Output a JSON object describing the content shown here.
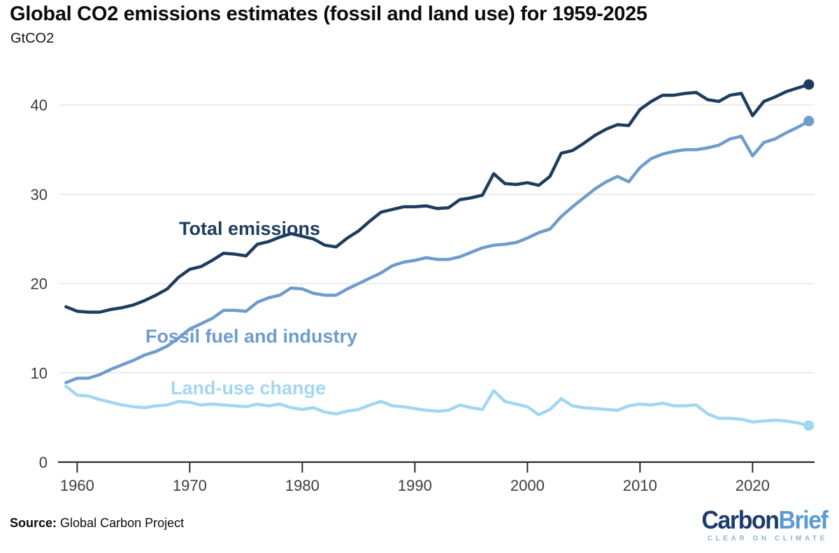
{
  "header": {
    "title": "Global CO2 emissions estimates (fossil and land use) for 1959-2025",
    "unit": "GtCO2"
  },
  "footer": {
    "source_label": "Source:",
    "source_text": "Global Carbon Project",
    "logo": {
      "part1": "Carbon",
      "part2": "Brief",
      "tagline": "CLEAR ON CLIMATE"
    }
  },
  "chart_data": {
    "type": "line",
    "title": "Global CO2 emissions estimates (fossil and land use) for 1959-2025",
    "ylabel": "GtCO2",
    "xlabel": "",
    "grid": "horizontal",
    "legend": "inline-labels",
    "xlim": [
      1958.3,
      2025.6
    ],
    "ylim": [
      0,
      44
    ],
    "x_ticks": [
      1960,
      1970,
      1980,
      1990,
      2000,
      2010,
      2020
    ],
    "y_ticks": [
      0,
      10,
      20,
      30,
      40
    ],
    "colors": {
      "total": "#1d3d5f",
      "fossil": "#6f9ccd",
      "landuse": "#a2d7f2",
      "gridline": "#e4e4e4",
      "axis": "#2b2b2b",
      "tick_label": "#3d3d3d"
    },
    "years": [
      1959,
      1960,
      1961,
      1962,
      1963,
      1964,
      1965,
      1966,
      1967,
      1968,
      1969,
      1970,
      1971,
      1972,
      1973,
      1974,
      1975,
      1976,
      1977,
      1978,
      1979,
      1980,
      1981,
      1982,
      1983,
      1984,
      1985,
      1986,
      1987,
      1988,
      1989,
      1990,
      1991,
      1992,
      1993,
      1994,
      1995,
      1996,
      1997,
      1998,
      1999,
      2000,
      2001,
      2002,
      2003,
      2004,
      2005,
      2006,
      2007,
      2008,
      2009,
      2010,
      2011,
      2012,
      2013,
      2014,
      2015,
      2016,
      2017,
      2018,
      2019,
      2020,
      2021,
      2022,
      2023,
      2024,
      2025
    ],
    "series": [
      {
        "name": "Total emissions",
        "color": "#1d3d5f",
        "values": [
          17.4,
          16.9,
          16.8,
          16.8,
          17.1,
          17.3,
          17.6,
          18.1,
          18.7,
          19.4,
          20.7,
          21.6,
          21.9,
          22.6,
          23.4,
          23.3,
          23.1,
          24.4,
          24.7,
          25.2,
          25.6,
          25.3,
          25.0,
          24.3,
          24.1,
          25.1,
          25.9,
          27.0,
          28.0,
          28.3,
          28.6,
          28.6,
          28.7,
          28.4,
          28.5,
          29.4,
          29.6,
          29.9,
          32.3,
          31.2,
          31.1,
          31.3,
          31.0,
          32.0,
          34.6,
          34.9,
          35.7,
          36.6,
          37.3,
          37.8,
          37.7,
          39.5,
          40.4,
          41.1,
          41.1,
          41.3,
          41.4,
          40.6,
          40.4,
          41.1,
          41.3,
          38.8,
          40.4,
          40.9,
          41.5,
          41.9,
          42.3
        ]
      },
      {
        "name": "Fossil fuel and industry",
        "color": "#6f9ccd",
        "values": [
          8.9,
          9.4,
          9.4,
          9.8,
          10.4,
          10.9,
          11.4,
          12.0,
          12.4,
          13.0,
          13.9,
          14.9,
          15.5,
          16.1,
          17.0,
          17.0,
          16.9,
          17.9,
          18.4,
          18.7,
          19.5,
          19.4,
          18.9,
          18.7,
          18.7,
          19.4,
          20.0,
          20.6,
          21.2,
          22.0,
          22.4,
          22.6,
          22.9,
          22.7,
          22.7,
          23.0,
          23.5,
          24.0,
          24.3,
          24.4,
          24.6,
          25.1,
          25.7,
          26.1,
          27.5,
          28.6,
          29.6,
          30.6,
          31.4,
          32.0,
          31.4,
          33.0,
          34.0,
          34.5,
          34.8,
          35.0,
          35.0,
          35.2,
          35.5,
          36.2,
          36.5,
          34.3,
          35.8,
          36.2,
          36.9,
          37.5,
          38.2
        ]
      },
      {
        "name": "Land-use change",
        "color": "#a2d7f2",
        "values": [
          8.5,
          7.5,
          7.4,
          7.0,
          6.7,
          6.4,
          6.2,
          6.1,
          6.3,
          6.4,
          6.8,
          6.7,
          6.4,
          6.5,
          6.4,
          6.3,
          6.2,
          6.5,
          6.3,
          6.5,
          6.1,
          5.9,
          6.1,
          5.6,
          5.4,
          5.7,
          5.9,
          6.4,
          6.8,
          6.3,
          6.2,
          6.0,
          5.8,
          5.7,
          5.8,
          6.4,
          6.1,
          5.9,
          8.0,
          6.8,
          6.5,
          6.2,
          5.3,
          5.9,
          7.1,
          6.3,
          6.1,
          6.0,
          5.9,
          5.8,
          6.3,
          6.5,
          6.4,
          6.6,
          6.3,
          6.3,
          6.4,
          5.4,
          4.9,
          4.9,
          4.8,
          4.5,
          4.6,
          4.7,
          4.6,
          4.4,
          4.1
        ]
      }
    ]
  }
}
